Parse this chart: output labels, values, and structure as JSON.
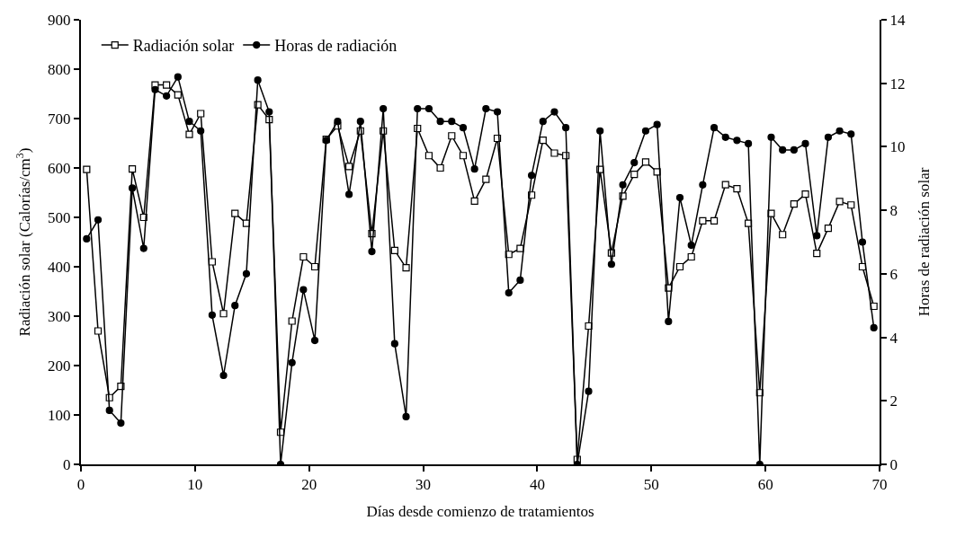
{
  "chart_data": {
    "type": "line",
    "xlabel": "Días desde comienzo de tratamientos",
    "ylabel": "Radiación solar (Calorías/cm$^{3}$)",
    "y2label": "Horas de radiación solar",
    "x": [
      0.5,
      1.5,
      2.5,
      3.5,
      4.5,
      5.5,
      6.5,
      7.5,
      8.5,
      9.5,
      10.5,
      11.5,
      12.5,
      13.5,
      14.5,
      15.5,
      16.5,
      17.5,
      18.5,
      19.5,
      20.5,
      21.5,
      22.5,
      23.5,
      24.5,
      25.5,
      26.5,
      27.5,
      28.5,
      29.5,
      30.5,
      31.5,
      32.5,
      33.5,
      34.5,
      35.5,
      36.5,
      37.5,
      38.5,
      39.5,
      40.5,
      41.5,
      42.5,
      43.5,
      44.5,
      45.5,
      46.5,
      47.5,
      48.5,
      49.5,
      50.5,
      51.5,
      52.5,
      53.5,
      54.5,
      55.5,
      56.5,
      57.5,
      58.5,
      59.5,
      60.5,
      61.5,
      62.5,
      63.5,
      64.5,
      65.5,
      66.5,
      67.5,
      68.5,
      69.5
    ],
    "series": [
      {
        "name": "Radiación solar",
        "color": "#000000",
        "marker": "square",
        "values": [
          597,
          270,
          135,
          158,
          598,
          500,
          768,
          768,
          748,
          668,
          710,
          410,
          305,
          508,
          488,
          728,
          698,
          65,
          290,
          420,
          400,
          658,
          685,
          603,
          675,
          467,
          675,
          433,
          398,
          680,
          625,
          600,
          665,
          625,
          533,
          577,
          660,
          425,
          437,
          545,
          656,
          630,
          625,
          10,
          280,
          597,
          428,
          543,
          587,
          612,
          592,
          357,
          400,
          420,
          493,
          493,
          566,
          558,
          488,
          145,
          508,
          465,
          527,
          547,
          427,
          478,
          532,
          525,
          400,
          320
        ]
      },
      {
        "name": "Horas de radiación",
        "color": "#000000",
        "marker": "circle",
        "axis": "y2",
        "values": [
          7.1,
          7.7,
          1.7,
          1.3,
          8.7,
          6.8,
          11.8,
          11.6,
          12.2,
          10.8,
          10.5,
          4.7,
          2.8,
          5.0,
          6.0,
          12.1,
          11.1,
          0,
          3.2,
          5.5,
          3.9,
          10.2,
          10.8,
          8.5,
          10.8,
          6.7,
          11.2,
          3.8,
          1.5,
          11.2,
          11.2,
          10.8,
          10.8,
          10.6,
          9.3,
          11.2,
          11.1,
          5.4,
          5.8,
          9.1,
          10.8,
          11.1,
          10.6,
          0,
          2.3,
          10.5,
          6.3,
          8.8,
          9.5,
          10.5,
          10.7,
          4.5,
          8.4,
          6.9,
          8.8,
          10.6,
          10.3,
          10.2,
          10.1,
          0,
          10.3,
          9.9,
          9.9,
          10.1,
          7.2,
          10.3,
          10.5,
          10.4,
          7.0,
          4.3
        ]
      }
    ],
    "xlim": [
      0,
      70
    ],
    "xticks": [
      0,
      10,
      20,
      30,
      40,
      50,
      60,
      70
    ],
    "ylim": [
      0,
      900
    ],
    "yticks": [
      0,
      100,
      200,
      300,
      400,
      500,
      600,
      700,
      800,
      900
    ],
    "y2lim": [
      0,
      14
    ],
    "y2ticks": [
      0,
      2,
      4,
      6,
      8,
      10,
      12,
      14
    ],
    "legend": "top left",
    "line_style": "solid"
  }
}
